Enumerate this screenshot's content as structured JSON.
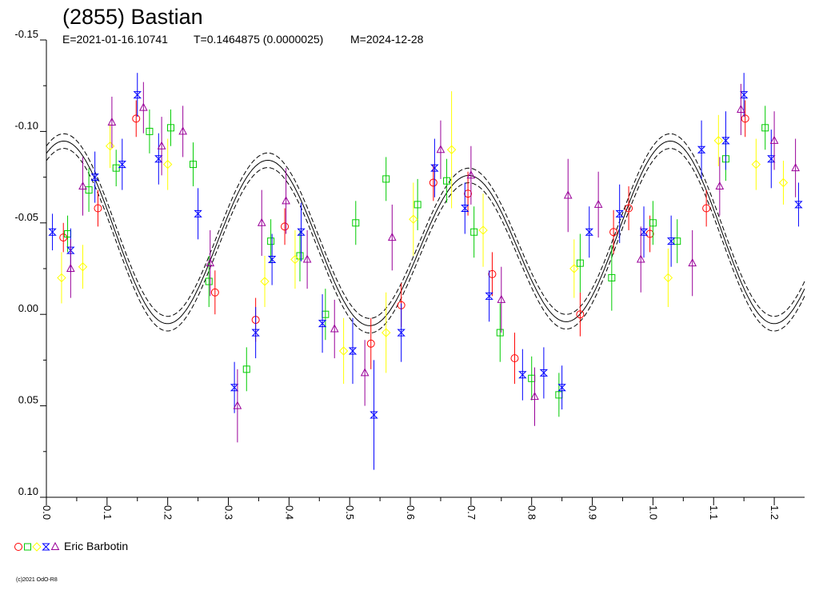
{
  "chart_data": {
    "type": "scatter",
    "title": "(2855) Bastian",
    "subtitle": {
      "epoch": "E=2021-01-16.10741",
      "period": "T=0.1464875 (0.0000025)",
      "modified": "M=2024-12-28"
    },
    "xlim": [
      0.0,
      1.25
    ],
    "ylim": [
      -0.15,
      0.1
    ],
    "y_inverted": true,
    "x_ticks": [
      "0.0",
      "0.1",
      "0.2",
      "0.3",
      "0.4",
      "0.5",
      "0.6",
      "0.7",
      "0.8",
      "0.9",
      "1.0",
      "1.1",
      "1.2"
    ],
    "x_tick_values": [
      0.0,
      0.1,
      0.2,
      0.3,
      0.4,
      0.5,
      0.6,
      0.7,
      0.8,
      0.9,
      1.0,
      1.1,
      1.2
    ],
    "y_ticks": [
      "-0.15",
      "-0.10",
      "-0.05",
      "0.00",
      "0.05",
      "0.10"
    ],
    "y_tick_values": [
      -0.15,
      -0.1,
      -0.05,
      0.0,
      0.05,
      0.1
    ],
    "grid": false,
    "legend_position": "bottom-left",
    "legend": {
      "label": "Eric Barbotin",
      "markers": [
        "circle",
        "square",
        "diamond",
        "hourglass",
        "triangle"
      ]
    },
    "fit_curve": {
      "harmonics": [
        {
          "n": 2,
          "a": -0.005,
          "b": 0.001
        },
        {
          "n": 3,
          "a": -0.038,
          "b": -0.024
        },
        {
          "n": 1,
          "a": -0.005,
          "b": -0.003
        }
      ],
      "mean": -0.04,
      "band": 0.004
    },
    "series": [
      {
        "name": "",
        "marker": "circle",
        "color": "#ff0000",
        "x": [
          0.028,
          0.085,
          0.148,
          0.278,
          0.345,
          0.393,
          0.535,
          0.585,
          0.638,
          0.695,
          0.735,
          0.772,
          0.88,
          0.935,
          0.96,
          0.995,
          1.088,
          1.152
        ],
        "y": [
          -0.042,
          -0.058,
          -0.107,
          -0.012,
          0.003,
          -0.048,
          0.016,
          -0.005,
          -0.072,
          -0.066,
          -0.022,
          0.024,
          0.0,
          -0.045,
          -0.058,
          -0.044,
          -0.058,
          -0.107
        ],
        "err": [
          0.008,
          0.01,
          0.01,
          0.012,
          0.012,
          0.01,
          0.014,
          0.012,
          0.01,
          0.012,
          0.012,
          0.014,
          0.012,
          0.012,
          0.012,
          0.01,
          0.01,
          0.01
        ]
      },
      {
        "name": "",
        "marker": "square",
        "color": "#00cc00",
        "x": [
          0.035,
          0.07,
          0.115,
          0.17,
          0.205,
          0.242,
          0.268,
          0.33,
          0.37,
          0.418,
          0.46,
          0.51,
          0.56,
          0.612,
          0.66,
          0.705,
          0.748,
          0.8,
          0.845,
          0.88,
          0.932,
          1.0,
          1.04,
          1.12,
          1.185
        ],
        "y": [
          -0.044,
          -0.068,
          -0.08,
          -0.1,
          -0.102,
          -0.082,
          -0.018,
          0.03,
          -0.04,
          -0.032,
          0.0,
          -0.05,
          -0.074,
          -0.06,
          -0.073,
          -0.045,
          0.01,
          0.035,
          0.044,
          -0.028,
          -0.02,
          -0.05,
          -0.04,
          -0.085,
          -0.102
        ],
        "err": [
          0.01,
          0.012,
          0.01,
          0.012,
          0.01,
          0.012,
          0.014,
          0.012,
          0.012,
          0.014,
          0.014,
          0.012,
          0.012,
          0.014,
          0.012,
          0.014,
          0.016,
          0.012,
          0.012,
          0.016,
          0.018,
          0.012,
          0.012,
          0.012,
          0.012
        ]
      },
      {
        "name": "",
        "marker": "diamond",
        "color": "#ffff00",
        "x": [
          0.025,
          0.06,
          0.105,
          0.2,
          0.36,
          0.41,
          0.49,
          0.56,
          0.605,
          0.668,
          0.72,
          0.87,
          1.025,
          1.108,
          1.17,
          1.215
        ],
        "y": [
          -0.02,
          -0.026,
          -0.092,
          -0.082,
          -0.018,
          -0.03,
          0.02,
          0.01,
          -0.052,
          -0.09,
          -0.046,
          -0.025,
          -0.02,
          -0.095,
          -0.082,
          -0.072
        ],
        "err": [
          0.014,
          0.012,
          0.012,
          0.014,
          0.014,
          0.016,
          0.018,
          0.022,
          0.02,
          0.032,
          0.02,
          0.016,
          0.016,
          0.014,
          0.014,
          0.012
        ]
      },
      {
        "name": "",
        "marker": "hourglass",
        "color": "#0000ff",
        "x": [
          0.01,
          0.04,
          0.08,
          0.125,
          0.15,
          0.185,
          0.25,
          0.31,
          0.345,
          0.372,
          0.42,
          0.455,
          0.505,
          0.54,
          0.585,
          0.64,
          0.69,
          0.73,
          0.785,
          0.82,
          0.85,
          0.895,
          0.945,
          0.985,
          1.03,
          1.08,
          1.12,
          1.15,
          1.195,
          1.24
        ],
        "y": [
          -0.045,
          -0.035,
          -0.075,
          -0.082,
          -0.12,
          -0.085,
          -0.055,
          0.04,
          0.01,
          -0.03,
          -0.045,
          0.005,
          0.02,
          0.055,
          0.01,
          -0.08,
          -0.058,
          -0.01,
          0.033,
          0.032,
          0.04,
          -0.045,
          -0.055,
          -0.045,
          -0.04,
          -0.09,
          -0.095,
          -0.12,
          -0.085,
          -0.06
        ],
        "err": [
          0.01,
          0.012,
          0.014,
          0.014,
          0.012,
          0.014,
          0.014,
          0.014,
          0.014,
          0.014,
          0.016,
          0.016,
          0.018,
          0.03,
          0.016,
          0.016,
          0.014,
          0.014,
          0.014,
          0.014,
          0.012,
          0.014,
          0.016,
          0.014,
          0.014,
          0.016,
          0.016,
          0.012,
          0.016,
          0.012
        ]
      },
      {
        "name": "",
        "marker": "triangle",
        "color": "#990099",
        "x": [
          0.04,
          0.06,
          0.108,
          0.16,
          0.19,
          0.225,
          0.27,
          0.315,
          0.355,
          0.395,
          0.43,
          0.475,
          0.525,
          0.57,
          0.65,
          0.7,
          0.75,
          0.805,
          0.86,
          0.91,
          0.98,
          1.065,
          1.11,
          1.145,
          1.2,
          1.235
        ],
        "y": [
          -0.025,
          -0.07,
          -0.105,
          -0.113,
          -0.092,
          -0.1,
          -0.028,
          0.05,
          -0.05,
          -0.062,
          -0.03,
          0.008,
          0.032,
          -0.042,
          -0.09,
          -0.076,
          -0.008,
          0.045,
          -0.065,
          -0.06,
          -0.03,
          -0.028,
          -0.07,
          -0.112,
          -0.095,
          -0.08
        ],
        "err": [
          0.016,
          0.016,
          0.014,
          0.014,
          0.016,
          0.014,
          0.018,
          0.02,
          0.018,
          0.018,
          0.016,
          0.016,
          0.018,
          0.018,
          0.016,
          0.016,
          0.018,
          0.016,
          0.02,
          0.018,
          0.018,
          0.018,
          0.016,
          0.014,
          0.016,
          0.016
        ]
      }
    ],
    "copyright": "(c)2021 OdO-R8"
  }
}
